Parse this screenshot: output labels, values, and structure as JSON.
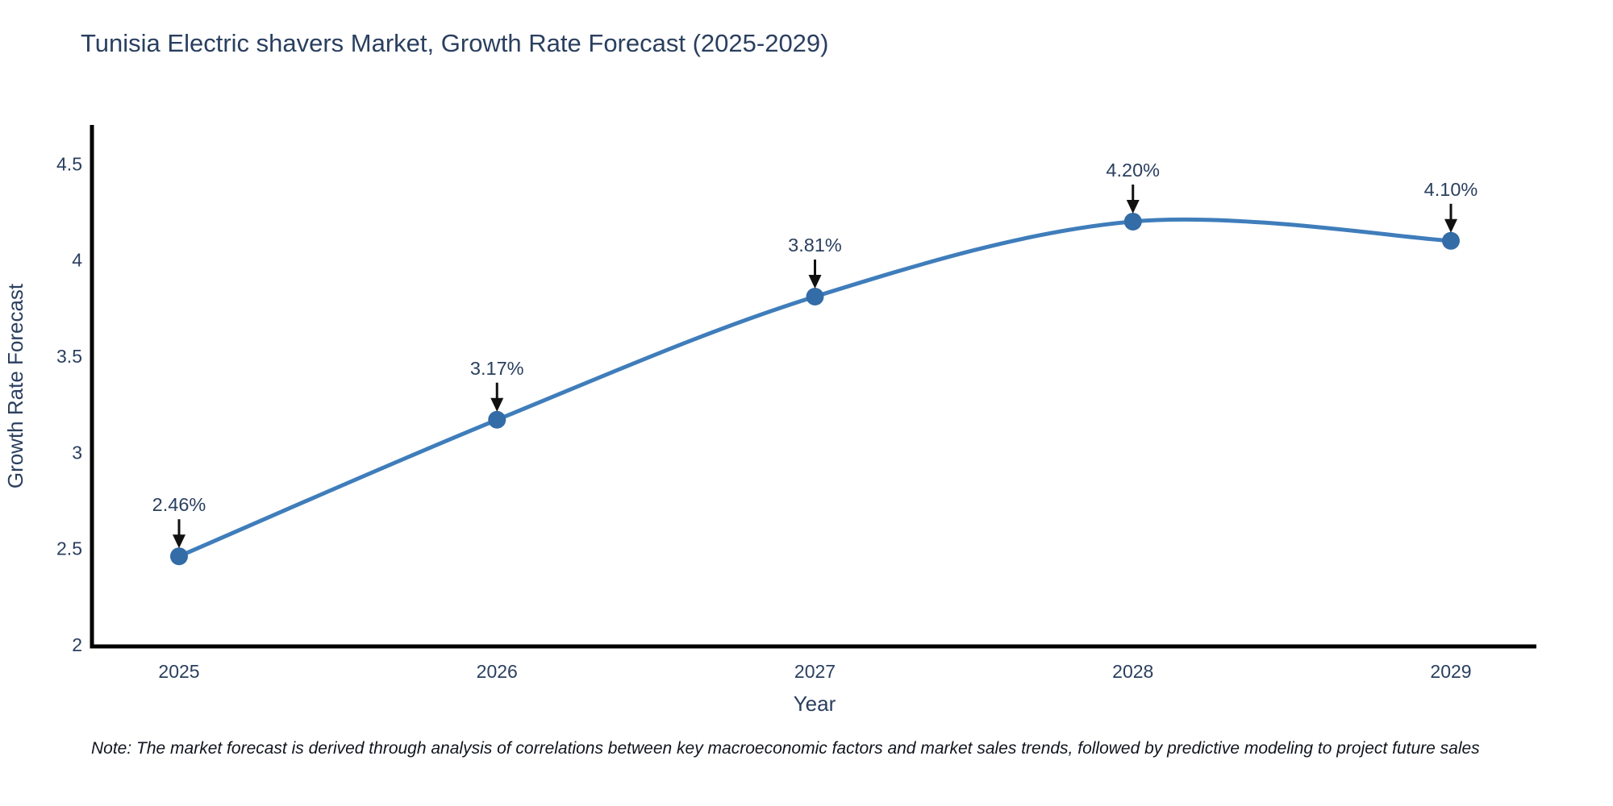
{
  "chart_data": {
    "type": "line",
    "title": "Tunisia Electric shavers Market, Growth Rate Forecast (2025-2029)",
    "categories": [
      "2025",
      "2026",
      "2027",
      "2028",
      "2029"
    ],
    "values": [
      2.46,
      3.17,
      3.81,
      4.2,
      4.1
    ],
    "point_labels": [
      "2.46%",
      "3.17%",
      "3.81%",
      "4.20%",
      "4.10%"
    ],
    "xlabel": "Year",
    "ylabel": "Growth Rate Forecast",
    "ylim": [
      2,
      4.69
    ],
    "yticks": [
      2,
      2.5,
      3,
      3.5,
      4,
      4.5
    ],
    "ytick_labels": [
      "2",
      "2.5",
      "3",
      "3.5",
      "4",
      "4.5"
    ],
    "line_shape": "spline",
    "grid": false,
    "legend": "none",
    "markers": true,
    "colors": {
      "line": "#3F7DBB",
      "marker": "#336CA6",
      "axis": "#000000",
      "text": "#2a3f5f",
      "arrow": "#111111",
      "background": "#ffffff"
    }
  },
  "note": "Note: The market forecast is derived through analysis of correlations between key macroeconomic factors and market sales trends, followed by predictive modeling to project future sales"
}
